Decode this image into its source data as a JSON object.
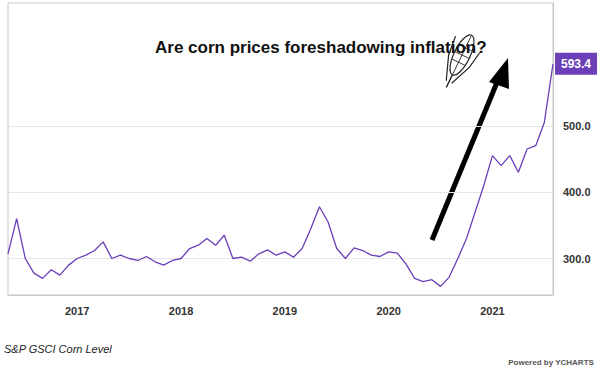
{
  "chart_data": {
    "type": "line",
    "title": "Are corn prices foreshadowing inflation?",
    "caption": "S&P GSCI Corn Level",
    "credit": "Powered by YCHARTS",
    "annotations": [
      {
        "text": "593.4"
      }
    ],
    "categories": [
      null,
      null,
      null,
      null,
      null,
      null,
      null,
      null,
      "2017",
      null,
      null,
      null,
      null,
      null,
      null,
      null,
      null,
      null,
      null,
      null,
      "2018",
      null,
      null,
      null,
      null,
      null,
      null,
      null,
      null,
      null,
      null,
      null,
      "2019",
      null,
      null,
      null,
      null,
      null,
      null,
      null,
      null,
      null,
      null,
      null,
      "2020",
      null,
      null,
      null,
      null,
      null,
      null,
      null,
      null,
      null,
      null,
      null,
      "2021",
      null,
      null,
      null,
      null,
      null,
      null,
      null
    ],
    "series": [
      {
        "name": "S&P GSCI Corn Level",
        "color": "#6a3fb8",
        "values": [
          307,
          360,
          300,
          278,
          270,
          283,
          275,
          290,
          300,
          305,
          312,
          325,
          300,
          305,
          300,
          297,
          303,
          295,
          290,
          297,
          300,
          315,
          320,
          330,
          320,
          335,
          300,
          302,
          296,
          307,
          313,
          305,
          310,
          302,
          315,
          345,
          378,
          355,
          315,
          300,
          316,
          312,
          305,
          303,
          310,
          308,
          292,
          270,
          265,
          268,
          258,
          272,
          300,
          330,
          370,
          410,
          455,
          440,
          455,
          430,
          465,
          470,
          505,
          593.4
        ]
      }
    ],
    "ylim": [
      245,
      685
    ],
    "yticks": [
      {
        "value": 300,
        "label": "300.0"
      },
      {
        "value": 400,
        "label": "400.0"
      },
      {
        "value": 500,
        "label": "500.0"
      }
    ],
    "grid": true
  }
}
